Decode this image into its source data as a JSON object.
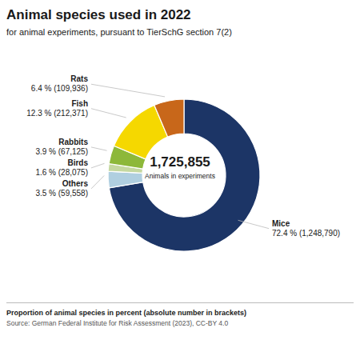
{
  "chart_data": {
    "type": "pie",
    "title": "Animal species used in 2022",
    "subtitle": "for animal experiments, pursuant to TierSchG section 7(2)",
    "categories": [
      "Mice",
      "Others",
      "Birds",
      "Rabbits",
      "Fish",
      "Rats"
    ],
    "values": [
      72.4,
      3.5,
      1.6,
      3.9,
      12.3,
      6.4
    ],
    "value_labels": [
      "72.4 % (1,248,790)",
      "3.5 % (59,558)",
      "1.6 % (28,075)",
      "3.9 % (67,125)",
      "12.3 % (212,371)",
      "6.4 % (109,936)"
    ],
    "colors": [
      "#1c3566",
      "#b0cfe0",
      "#c5d8a0",
      "#8db83a",
      "#f5d800",
      "#c8671a"
    ],
    "data_labels": true,
    "annotations": [
      "1,725,855",
      "Animals in experiments",
      "Proportion of animal species in percent (absolute number in brackets)",
      "Source: German Federal Institute for Risk Assessment (2023), CC-BY 4.0"
    ]
  }
}
